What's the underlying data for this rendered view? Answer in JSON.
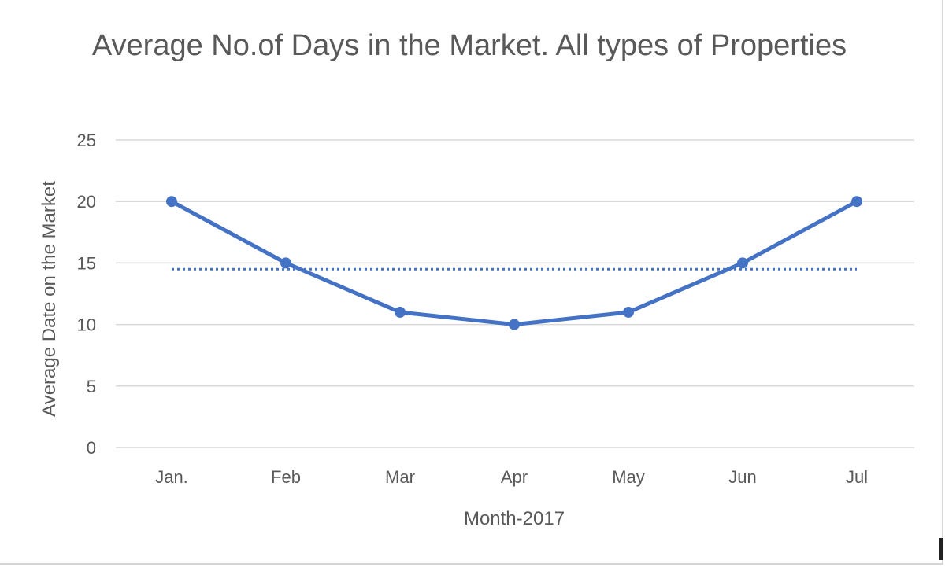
{
  "chart_data": {
    "type": "line",
    "title": "Average No.of Days in the Market. All types of Properties",
    "xlabel": "Month-2017",
    "ylabel": "Average Date on the Market",
    "categories": [
      "Jan.",
      "Feb",
      "Mar",
      "Apr",
      "May",
      "Jun",
      "Jul"
    ],
    "series": [
      {
        "values": [
          20,
          15,
          11,
          10,
          11,
          15,
          20
        ],
        "color": "#4472c4",
        "style": "solid",
        "markers": true
      }
    ],
    "reference_line": {
      "value": 14.5,
      "style": "dotted",
      "color": "#4472c4"
    },
    "ylim": [
      0,
      25
    ],
    "yticks": [
      0,
      5,
      10,
      15,
      20,
      25
    ],
    "grid": true,
    "legend": "none"
  }
}
